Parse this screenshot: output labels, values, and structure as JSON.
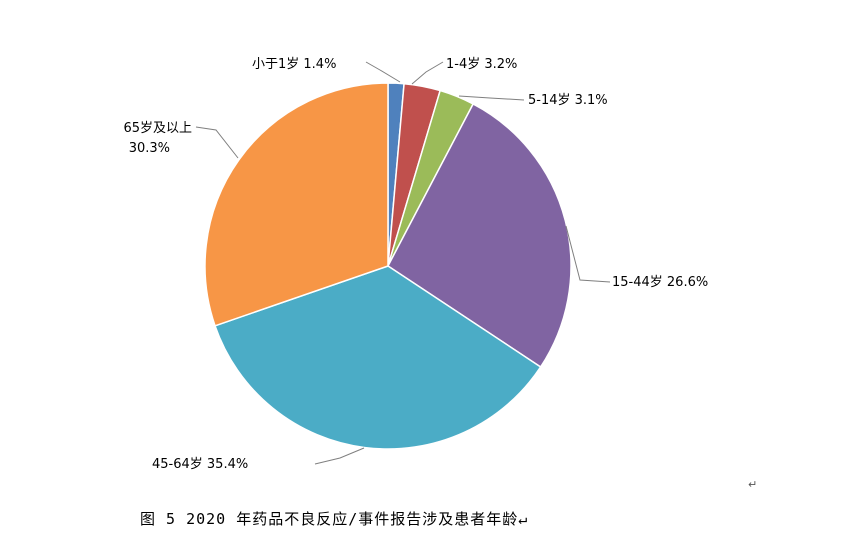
{
  "chart_data": {
    "type": "pie",
    "slices": [
      {
        "label": "小于1岁 1.4%",
        "value": 1.4,
        "color": "#4f81bd"
      },
      {
        "label": "1-4岁 3.2%",
        "value": 3.2,
        "color": "#c0504d"
      },
      {
        "label": "5-14岁 3.1%",
        "value": 3.1,
        "color": "#9bbb59"
      },
      {
        "label": "15-44岁 26.6%",
        "value": 26.6,
        "color": "#8064a2"
      },
      {
        "label": "45-64岁 35.4%",
        "value": 35.4,
        "color": "#4bacc6"
      },
      {
        "label_lines": [
          "65岁及以上",
          "30.3%"
        ],
        "value": 30.3,
        "color": "#f79646"
      }
    ]
  },
  "paragraph_marks": [
    "↵"
  ],
  "caption": "图 5  2020 年药品不良反应/事件报告涉及患者年龄↵"
}
